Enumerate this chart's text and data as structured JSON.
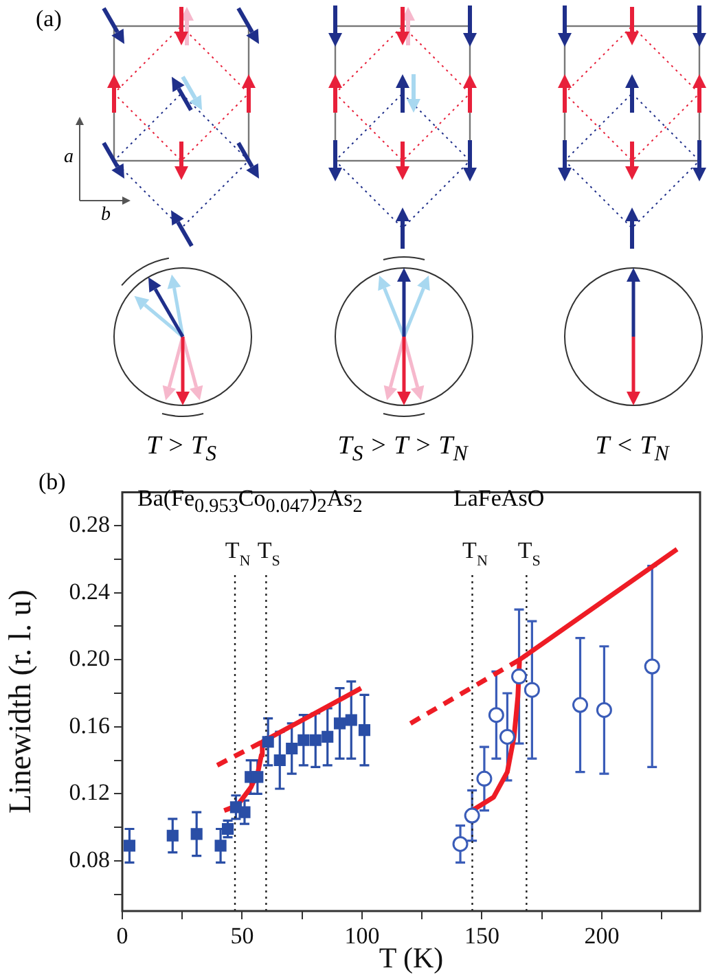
{
  "chart_data": [
    {
      "type": "other",
      "title": "(a)",
      "annotations": [
        "a",
        "b",
        "T > T$_{S}$",
        "T$_{S}$ > T > T$_{N}$",
        "T < T$_{N}$"
      ]
    },
    {
      "type": "scatter",
      "title": "(b)",
      "xlabel": "T (K)",
      "ylabel": "Linewidth (r. l. u)",
      "annotations": [
        "Ba(Fe$_{0.953}$Co$_{0.047}$)$_{2}$As$_{2}$",
        "LaFeAsO"
      ],
      "xlim": [
        0,
        241
      ],
      "ylim": [
        0.05,
        0.3
      ],
      "xticks": [
        0,
        {
          "value": 25,
          "label": null
        },
        50,
        {
          "value": 75,
          "label": null
        },
        100,
        {
          "value": 125,
          "label": null
        },
        150,
        {
          "value": 175,
          "label": null
        },
        200,
        {
          "value": 225,
          "label": null
        }
      ],
      "yticks": [
        {
          "value": 0.06,
          "label": null
        },
        0.08,
        {
          "value": 0.1,
          "label": null
        },
        0.12,
        {
          "value": 0.14,
          "label": null
        },
        0.16,
        {
          "value": 0.18,
          "label": null
        },
        {
          "value": 0.2,
          "label": "0.20"
        },
        {
          "value": 0.22,
          "label": null
        },
        0.24,
        {
          "value": 0.26,
          "label": null
        },
        0.28
      ],
      "grid": false,
      "ref_lines": [
        {
          "axis": "x",
          "value": 47,
          "label": "T$_{N}$",
          "color": "#222222",
          "line_style": "dotted"
        },
        {
          "axis": "x",
          "value": 60,
          "label": "T$_{S}$",
          "color": "#222222",
          "line_style": "dotted"
        },
        {
          "axis": "x",
          "value": 146,
          "label": "T$_{N}$",
          "color": "#222222",
          "line_style": "dotted"
        },
        {
          "axis": "x",
          "value": 168.6,
          "label": "T$_{S}$",
          "color": "#222222",
          "line_style": "dotted"
        }
      ],
      "series": [
        {
          "type": "scatter",
          "marker": "square",
          "color": "#2a4ea6",
          "x": [
            3,
            21,
            31,
            41,
            44,
            47.4,
            51,
            53.5,
            56.4,
            60.8,
            65.7,
            70.7,
            75.6,
            80.6,
            85.6,
            90.7,
            95.5,
            101
          ],
          "values": [
            0.089,
            0.095,
            0.096,
            0.089,
            0.099,
            0.112,
            0.109,
            0.13,
            0.13,
            0.151,
            0.14,
            0.147,
            0.152,
            0.152,
            0.154,
            0.162,
            0.164,
            0.158
          ],
          "errors": [
            0.01,
            0.01,
            0.013,
            0.01,
            0.005,
            0.007,
            0.007,
            0.01,
            0.01,
            0.014,
            0.017,
            0.015,
            0.015,
            0.016,
            0.017,
            0.021,
            0.023,
            0.021
          ]
        },
        {
          "type": "scatter",
          "marker": "circle",
          "color": "#3a5cb8",
          "x": [
            141,
            145.9,
            151,
            156,
            160.6,
            165.5,
            170.9,
            191,
            201,
            221
          ],
          "values": [
            0.09,
            0.107,
            0.129,
            0.167,
            0.154,
            0.19,
            0.182,
            0.173,
            0.17,
            0.196
          ],
          "errors": [
            0.011,
            0.015,
            0.019,
            0.026,
            0.026,
            0.04,
            0.041,
            0.04,
            0.038,
            0.06
          ]
        },
        {
          "type": "line",
          "line_style": "solid",
          "color": "#ee1c25",
          "x": [
            42.5,
            48,
            53.7,
            56.6,
            58,
            58.4,
            99.6
          ],
          "values": [
            0.11,
            0.113,
            0.124,
            0.133,
            0.143,
            0.151,
            0.183
          ]
        },
        {
          "type": "line",
          "line_style": "dashed",
          "color": "#ee1c25",
          "x": [
            39.6,
            58.4
          ],
          "values": [
            0.137,
            0.151
          ]
        },
        {
          "type": "line",
          "line_style": "solid",
          "color": "#ee1c25",
          "x": [
            145.9,
            154.9,
            160.6,
            163.4,
            165,
            165.7,
            231.4
          ],
          "values": [
            0.11,
            0.118,
            0.133,
            0.154,
            0.178,
            0.2,
            0.266
          ]
        },
        {
          "type": "line",
          "line_style": "dashed",
          "color": "#ee1c25",
          "x": [
            120.2,
            165.7
          ],
          "values": [
            0.162,
            0.2
          ]
        }
      ]
    }
  ]
}
